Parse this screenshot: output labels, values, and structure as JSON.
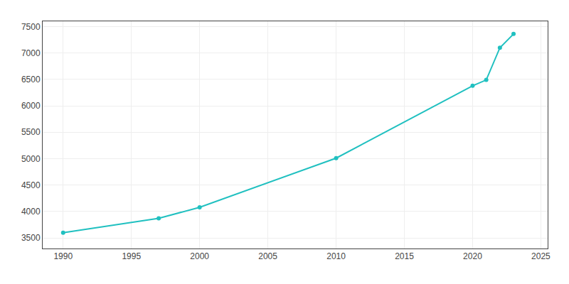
{
  "chart_data": {
    "type": "line",
    "x": [
      1990,
      1997,
      2000,
      2010,
      2020,
      2021,
      2022,
      2023
    ],
    "values": [
      3600,
      3870,
      4080,
      5010,
      6380,
      6490,
      7100,
      7360
    ],
    "color": "#20C0C0",
    "marker": "circle",
    "line_style": "solid",
    "xlim": [
      1988.5,
      2025.5
    ],
    "ylim": [
      3300,
      7600
    ],
    "xticks": [
      1990,
      1995,
      2000,
      2005,
      2010,
      2015,
      2020,
      2025
    ],
    "yticks": [
      3500,
      4000,
      4500,
      5000,
      5500,
      6000,
      6500,
      7000,
      7500
    ],
    "grid": true
  }
}
